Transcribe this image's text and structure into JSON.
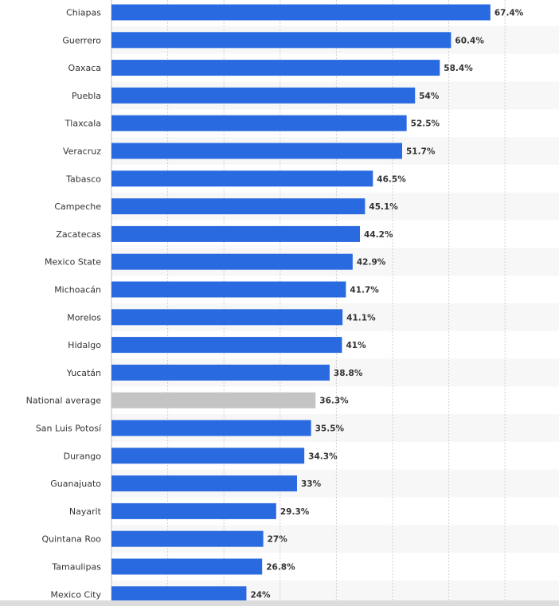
{
  "chart_data": {
    "type": "bar",
    "orientation": "horizontal",
    "categories": [
      "Chiapas",
      "Guerrero",
      "Oaxaca",
      "Puebla",
      "Tlaxcala",
      "Veracruz",
      "Tabasco",
      "Campeche",
      "Zacatecas",
      "Mexico State",
      "Michoacán",
      "Morelos",
      "Hidalgo",
      "Yucatán",
      "National average",
      "San Luis Potosí",
      "Durango",
      "Guanajuato",
      "Nayarit",
      "Quintana Roo",
      "Tamaulipas",
      "Mexico City"
    ],
    "values": [
      67.4,
      60.4,
      58.4,
      54,
      52.5,
      51.7,
      46.5,
      45.1,
      44.2,
      42.9,
      41.7,
      41.1,
      41,
      38.8,
      36.3,
      35.5,
      34.3,
      33,
      29.3,
      27,
      26.8,
      24
    ],
    "value_labels": [
      "67.4%",
      "60.4%",
      "58.4%",
      "54%",
      "52.5%",
      "51.7%",
      "46.5%",
      "45.1%",
      "44.2%",
      "42.9%",
      "41.7%",
      "41.1%",
      "41%",
      "38.8%",
      "36.3%",
      "35.5%",
      "34.3%",
      "33%",
      "29.3%",
      "27%",
      "26.8%",
      "24%"
    ],
    "highlight_category": "National average",
    "xlim": [
      0,
      80
    ],
    "grid": true,
    "colors": {
      "bar": "#2a6ae0",
      "highlight_bar": "#c4c4c4",
      "grid": "#cfcfcf",
      "stripe": "#f7f7f7"
    }
  }
}
